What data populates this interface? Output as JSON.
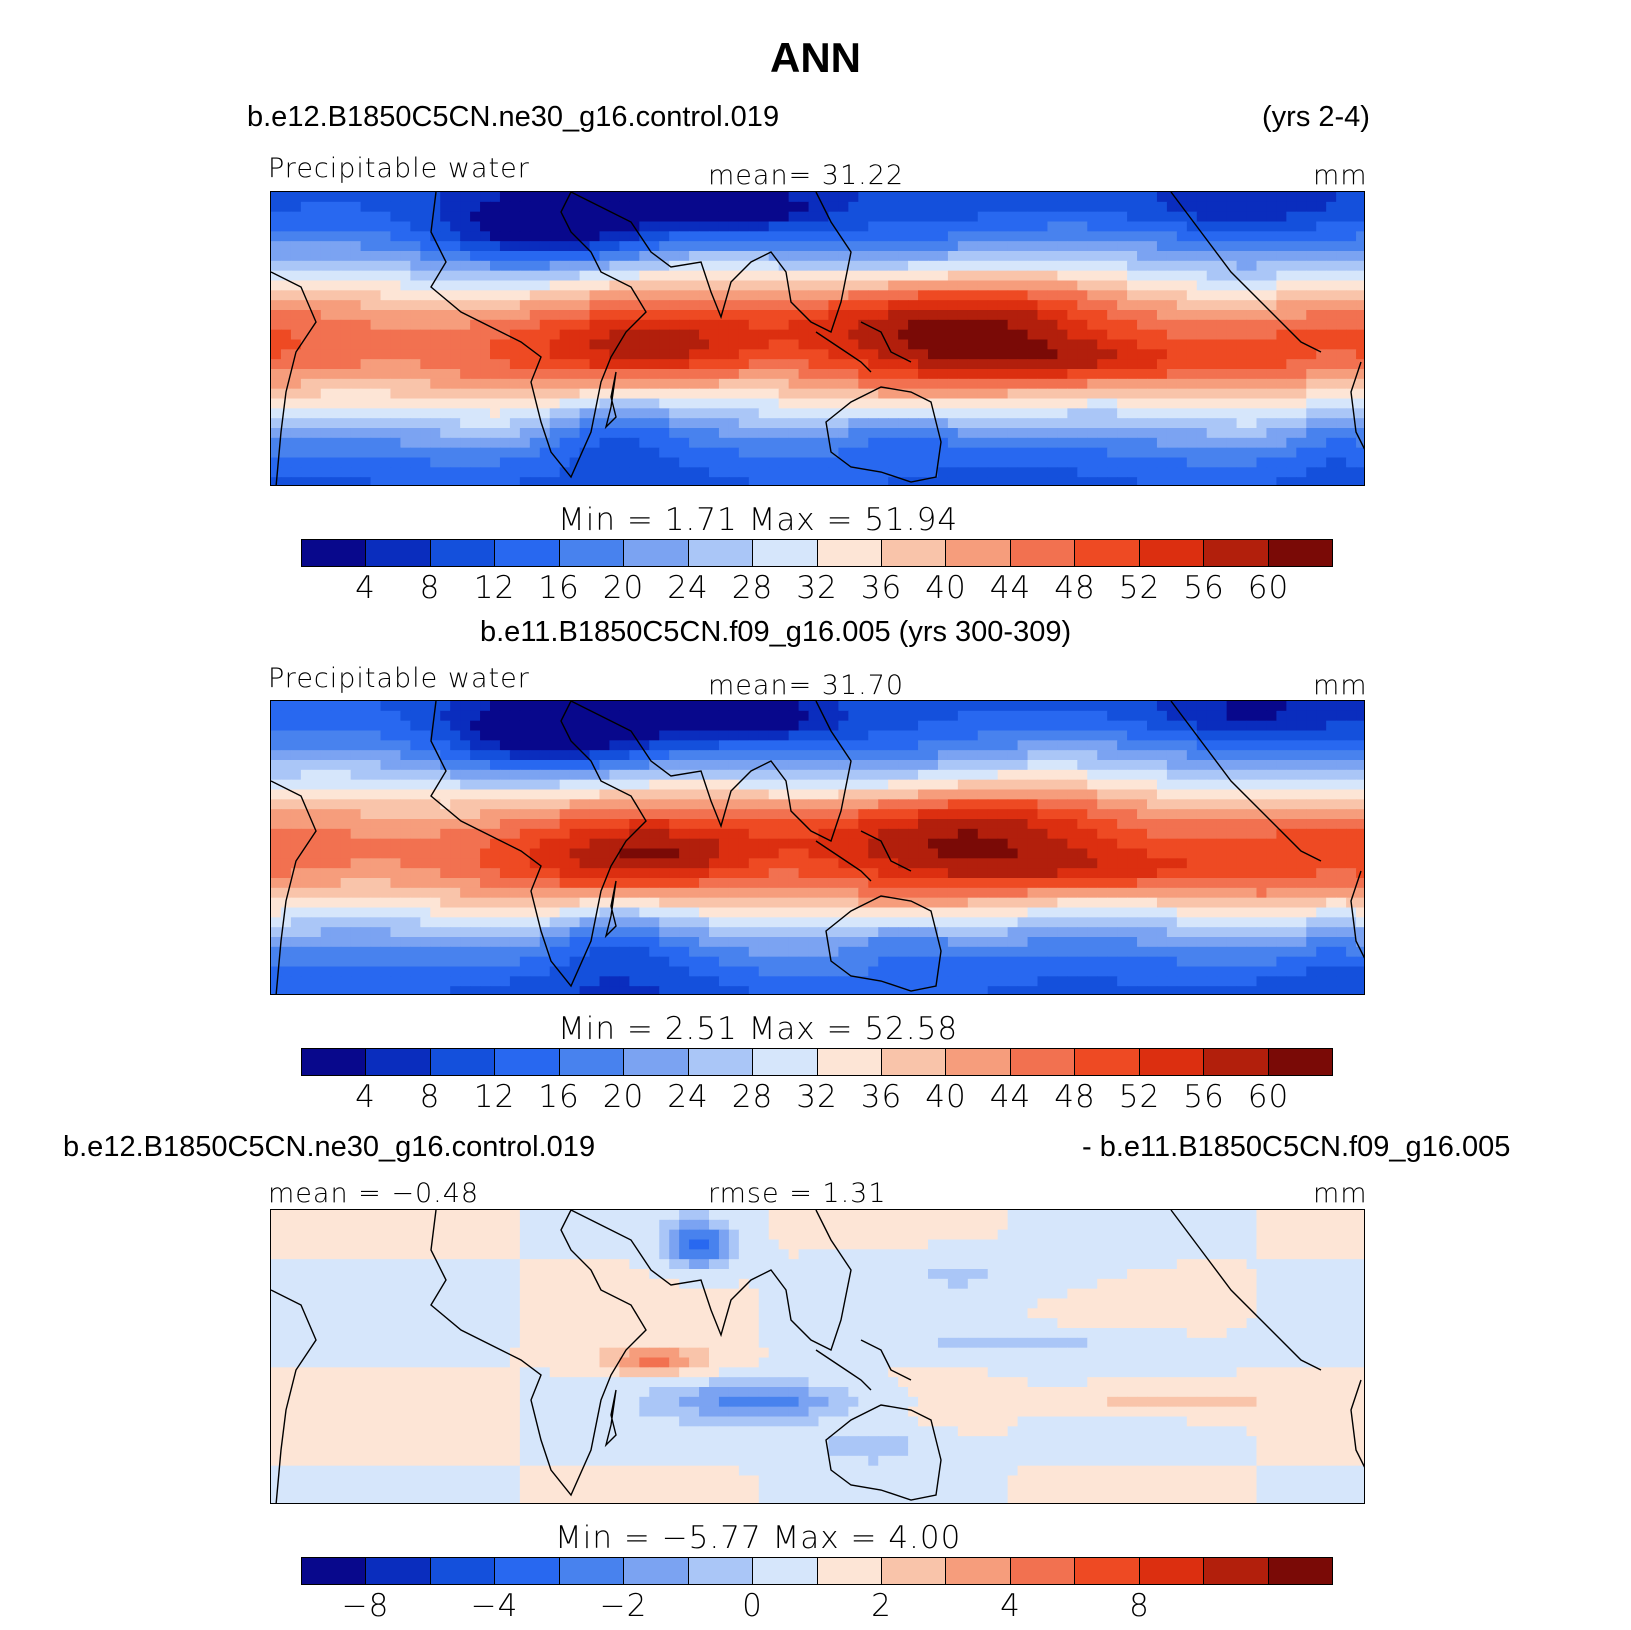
{
  "title": "ANN",
  "palette": [
    "#08088c",
    "#0a2dbe",
    "#1450dc",
    "#2868f0",
    "#4882ee",
    "#7ba3f2",
    "#aac6f7",
    "#d6e6fb",
    "#fde5d6",
    "#f9c4aa",
    "#f69d7c",
    "#f27150",
    "#ee4a23",
    "#dc2f10",
    "#b21f0c",
    "#7a0a06"
  ],
  "panels": [
    {
      "id": "top",
      "case_left": "b.e12.B1850C5CN.ne30_g16.control.019",
      "case_right": "(yrs 2-4)",
      "left_label": "Precipitable water",
      "center_label": "mean=   31.22",
      "units": "mm",
      "minmax": "Min  =     1.71  Max  =    51.94",
      "ticks": [
        "4",
        "8",
        "12",
        "16",
        "20",
        "24",
        "28",
        "32",
        "36",
        "40",
        "44",
        "48",
        "52",
        "56",
        "60"
      ],
      "levels": [
        4,
        8,
        12,
        16,
        20,
        24,
        28,
        32,
        36,
        40,
        44,
        48,
        52,
        56,
        60
      ],
      "field": "precip"
    },
    {
      "id": "mid",
      "case_center": "b.e11.B1850C5CN.f09_g16.005 (yrs 300-309)",
      "left_label": "Precipitable water",
      "center_label": "mean=   31.70",
      "units": "mm",
      "minmax": "Min  =     2.51  Max  =    52.58",
      "ticks": [
        "4",
        "8",
        "12",
        "16",
        "20",
        "24",
        "28",
        "32",
        "36",
        "40",
        "44",
        "48",
        "52",
        "56",
        "60"
      ],
      "levels": [
        4,
        8,
        12,
        16,
        20,
        24,
        28,
        32,
        36,
        40,
        44,
        48,
        52,
        56,
        60
      ],
      "field": "precip"
    },
    {
      "id": "diff",
      "case_left": "b.e12.B1850C5CN.ne30_g16.control.019",
      "case_right": "- b.e11.B1850C5CN.f09_g16.005",
      "left_label": "mean  =   −0.48",
      "center_label": "rmse  =     1.31",
      "units": "mm",
      "minmax": "Min  =   −5.77  Max  =     4.00",
      "ticks": [
        "−8",
        "−4",
        "−2",
        "0",
        "2",
        "4",
        "8"
      ],
      "tick_boundaries": [
        1,
        3,
        5,
        7,
        9,
        11,
        13
      ],
      "levels": [
        -10,
        -8,
        -6,
        -4,
        -3,
        -2,
        -1,
        0,
        1,
        2,
        3,
        4,
        6,
        8,
        10
      ],
      "field": "diff"
    }
  ]
}
